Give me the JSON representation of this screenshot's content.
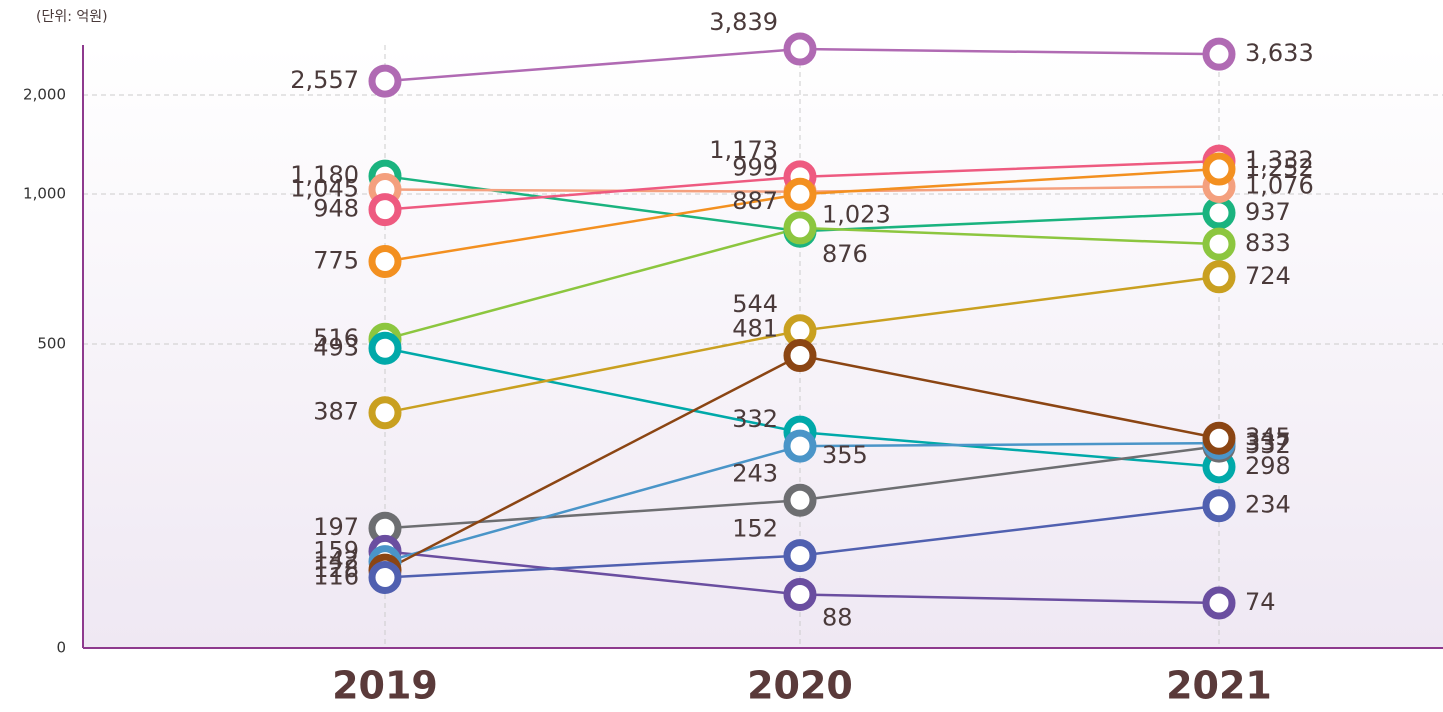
{
  "chart_data": {
    "type": "line",
    "y_label": "(단위: 억원)",
    "categories": [
      "2019",
      "2020",
      "2021"
    ],
    "ylim": [
      0,
      4000
    ],
    "yticks": [
      0,
      500,
      {
        "value": 1000,
        "label": "1,000"
      },
      {
        "value": 2000,
        "label": "2,000"
      }
    ],
    "grid": true,
    "series": [
      {
        "color": "#b06ab3",
        "values": [
          2557,
          3839,
          3633
        ],
        "value_labels": [
          "2,557",
          "3,839",
          "3,633"
        ]
      },
      {
        "color": "#1ab37f",
        "values": [
          1180,
          876,
          937
        ],
        "value_labels": [
          "1,180",
          "876",
          "937"
        ]
      },
      {
        "color": "#f4a07e",
        "values": [
          1045,
          1023,
          1076
        ],
        "value_labels": [
          "1,045",
          "1,023",
          "1,076"
        ]
      },
      {
        "color": "#ee5a80",
        "values": [
          948,
          1173,
          1332
        ],
        "value_labels": [
          "948",
          "1,173",
          "1,332"
        ]
      },
      {
        "color": "#f39020",
        "values": [
          775,
          999,
          1252
        ],
        "value_labels": [
          "775",
          "999",
          "1,252"
        ]
      },
      {
        "color": "#8cc63f",
        "values": [
          516,
          887,
          833
        ],
        "value_labels": [
          "516",
          "887",
          "833"
        ]
      },
      {
        "color": "#00a9a9",
        "values": [
          493,
          355,
          298
        ],
        "value_labels": [
          "493",
          "355",
          "298"
        ]
      },
      {
        "color": "#c9a020",
        "values": [
          387,
          544,
          724
        ],
        "value_labels": [
          "387",
          "544",
          "724"
        ]
      },
      {
        "color": "#6d6e71",
        "values": [
          197,
          243,
          332
        ],
        "value_labels": [
          "197",
          "243",
          "332"
        ]
      },
      {
        "color": "#6a4ea0",
        "values": [
          159,
          88,
          74
        ],
        "value_labels": [
          "159",
          "88",
          "74"
        ]
      },
      {
        "color": "#4a95c8",
        "values": [
          142,
          332,
          337
        ],
        "value_labels": [
          "142",
          "332",
          "337"
        ]
      },
      {
        "color": "#8b4513",
        "values": [
          128,
          481,
          345
        ],
        "value_labels": [
          "128",
          "481",
          "345"
        ]
      },
      {
        "color": "#5060b0",
        "values": [
          116,
          152,
          234
        ],
        "value_labels": [
          "116",
          "152",
          "234"
        ]
      }
    ]
  }
}
